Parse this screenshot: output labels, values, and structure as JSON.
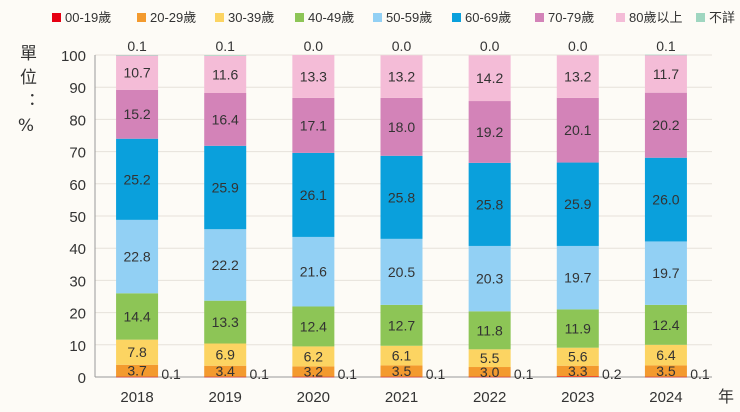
{
  "chart_data": {
    "type": "bar",
    "stacked": true,
    "ylabel": "單位：%",
    "xlabel": "年",
    "ylim": [
      0,
      100
    ],
    "yticks": [
      0,
      10,
      20,
      30,
      40,
      50,
      60,
      70,
      80,
      90,
      100
    ],
    "grid": true,
    "legend_position": "top",
    "categories": [
      "2018",
      "2019",
      "2020",
      "2021",
      "2022",
      "2023",
      "2024"
    ],
    "series": [
      {
        "name": "00-19歲",
        "color": "#e60012",
        "values": [
          0.1,
          0.1,
          0.1,
          0.1,
          0.1,
          0.2,
          0.1
        ]
      },
      {
        "name": "20-29歲",
        "color": "#f39a2e",
        "values": [
          3.7,
          3.4,
          3.2,
          3.5,
          3.0,
          3.3,
          3.5
        ]
      },
      {
        "name": "30-39歲",
        "color": "#fcd462",
        "values": [
          7.8,
          6.9,
          6.2,
          6.1,
          5.5,
          5.6,
          6.4
        ]
      },
      {
        "name": "40-49歲",
        "color": "#8dc556",
        "values": [
          14.4,
          13.3,
          12.4,
          12.7,
          11.8,
          11.9,
          12.4
        ]
      },
      {
        "name": "50-59歲",
        "color": "#92d0f4",
        "values": [
          22.8,
          22.2,
          21.6,
          20.5,
          20.3,
          19.7,
          19.7
        ]
      },
      {
        "name": "60-69歲",
        "color": "#0aa0dc",
        "values": [
          25.2,
          25.9,
          26.1,
          25.8,
          25.8,
          25.9,
          26.0
        ]
      },
      {
        "name": "70-79歲",
        "color": "#d383b8",
        "values": [
          15.2,
          16.4,
          17.1,
          18.0,
          19.2,
          20.1,
          20.2
        ]
      },
      {
        "name": "80歲以上",
        "color": "#f4bcd7",
        "values": [
          10.7,
          11.6,
          13.3,
          13.2,
          14.2,
          13.2,
          11.7
        ]
      },
      {
        "name": "不詳",
        "color": "#9fd6c0",
        "values": [
          0.1,
          0.1,
          0.0,
          0.0,
          0.0,
          0.0,
          0.1
        ]
      }
    ]
  }
}
